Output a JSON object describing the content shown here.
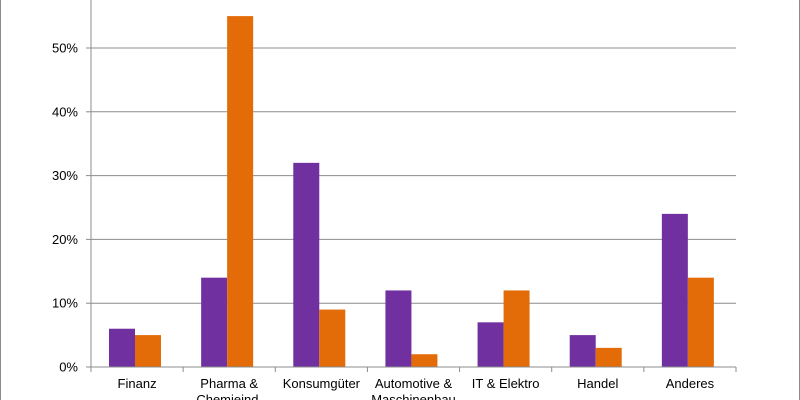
{
  "chart_data": {
    "type": "bar",
    "categories": [
      [
        "Finanz"
      ],
      [
        "Pharma &",
        "Chemieind."
      ],
      [
        "Konsumgüter"
      ],
      [
        "Automotive &",
        "Maschinenbau"
      ],
      [
        "IT & Elektro"
      ],
      [
        "Handel"
      ],
      [
        "Anderes"
      ]
    ],
    "series": [
      {
        "color": "#7030a0",
        "values": [
          6,
          14,
          32,
          12,
          7,
          5,
          24
        ]
      },
      {
        "color": "#e36c09",
        "values": [
          5,
          55,
          9,
          2,
          12,
          3,
          14
        ]
      }
    ],
    "y_ticks": [
      0,
      10,
      20,
      30,
      40,
      50
    ],
    "y_tick_labels": [
      "0%",
      "10%",
      "20%",
      "30%",
      "40%",
      "50%"
    ],
    "ylim": [
      0,
      60
    ],
    "grid": true,
    "legend": false,
    "title": "",
    "xlabel": "",
    "ylabel": ""
  }
}
